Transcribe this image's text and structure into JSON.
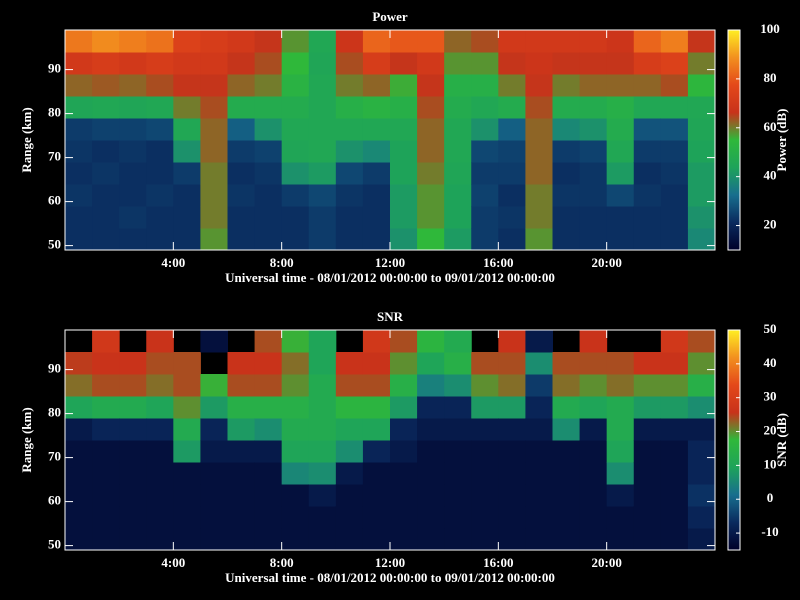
{
  "chart_data": [
    {
      "type": "heatmap",
      "title": "Power",
      "xlabel": "Universal time - 08/01/2012 00:00:00 to 09/01/2012 00:00:00",
      "ylabel": "Range (km)",
      "zlabel": "Power (dB)",
      "xlim": [
        0,
        24
      ],
      "ylim": [
        49,
        99
      ],
      "zlim": [
        10,
        100
      ],
      "xticks": [
        {
          "value": 4,
          "label": "4:00"
        },
        {
          "value": 8,
          "label": "8:00"
        },
        {
          "value": 12,
          "label": "12:00"
        },
        {
          "value": 16,
          "label": "16:00"
        },
        {
          "value": 20,
          "label": "20:00"
        }
      ],
      "yticks": [
        50,
        60,
        70,
        80,
        90
      ],
      "zticks": [
        20,
        40,
        60,
        80,
        100
      ],
      "colormap": [
        "#00002a",
        "#0a2a5e",
        "#176e8e",
        "#1ea35a",
        "#2fb83a",
        "#c8321a",
        "#e4481a",
        "#f2901e",
        "#ffee22"
      ],
      "xbins": [
        0,
        1,
        2,
        3,
        4,
        5,
        6,
        7,
        8,
        9,
        10,
        11,
        12,
        13,
        14,
        15,
        16,
        17,
        18,
        19,
        20,
        21,
        22,
        23,
        24
      ],
      "ybins": [
        49,
        54,
        59,
        64,
        69,
        74,
        79,
        84,
        89,
        94,
        99
      ],
      "z": [
        [
          22,
          22,
          23,
          22,
          23,
          24,
          45,
          62,
          70,
          85
        ],
        [
          22,
          22,
          22,
          23,
          22,
          25,
          46,
          63,
          72,
          88
        ],
        [
          22,
          23,
          22,
          22,
          23,
          25,
          45,
          62,
          70,
          86
        ],
        [
          22,
          22,
          23,
          22,
          22,
          26,
          46,
          64,
          72,
          84
        ],
        [
          22,
          22,
          22,
          24,
          40,
          46,
          60,
          66,
          70,
          74
        ],
        [
          58,
          60,
          60,
          60,
          62,
          62,
          64,
          66,
          70,
          72
        ],
        [
          22,
          22,
          23,
          22,
          24,
          30,
          48,
          62,
          66,
          70
        ],
        [
          22,
          22,
          22,
          23,
          25,
          40,
          48,
          60,
          64,
          66
        ],
        [
          22,
          22,
          24,
          40,
          45,
          46,
          48,
          52,
          55,
          58
        ],
        [
          24,
          24,
          26,
          42,
          46,
          46,
          46,
          46,
          45,
          46
        ],
        [
          22,
          22,
          23,
          26,
          40,
          46,
          50,
          60,
          64,
          68
        ],
        [
          22,
          22,
          22,
          24,
          38,
          46,
          52,
          62,
          72,
          82
        ],
        [
          40,
          42,
          42,
          44,
          44,
          46,
          50,
          56,
          66,
          80
        ],
        [
          55,
          58,
          58,
          60,
          62,
          62,
          64,
          66,
          70,
          80
        ],
        [
          42,
          44,
          44,
          45,
          46,
          46,
          48,
          50,
          58,
          62
        ],
        [
          24,
          24,
          25,
          24,
          26,
          40,
          46,
          50,
          58,
          64
        ],
        [
          22,
          23,
          22,
          24,
          25,
          30,
          48,
          60,
          66,
          70
        ],
        [
          58,
          60,
          60,
          62,
          62,
          62,
          64,
          66,
          68,
          70
        ],
        [
          22,
          22,
          23,
          22,
          24,
          38,
          48,
          60,
          66,
          70
        ],
        [
          22,
          22,
          23,
          23,
          25,
          40,
          48,
          62,
          66,
          70
        ],
        [
          22,
          22,
          26,
          42,
          46,
          48,
          50,
          62,
          66,
          68
        ],
        [
          22,
          22,
          23,
          22,
          24,
          28,
          46,
          62,
          72,
          82
        ],
        [
          22,
          22,
          22,
          23,
          24,
          28,
          46,
          64,
          74,
          86
        ],
        [
          38,
          40,
          42,
          42,
          44,
          45,
          46,
          54,
          60,
          66
        ]
      ]
    },
    {
      "type": "heatmap",
      "title": "SNR",
      "xlabel": "Universal time - 08/01/2012 00:00:00 to 09/01/2012 00:00:00",
      "ylabel": "Range (km)",
      "zlabel": "SNR (dB)",
      "xlim": [
        0,
        24
      ],
      "ylim": [
        49,
        99
      ],
      "zlim": [
        -15,
        50
      ],
      "xticks": [
        {
          "value": 4,
          "label": "4:00"
        },
        {
          "value": 8,
          "label": "8:00"
        },
        {
          "value": 12,
          "label": "12:00"
        },
        {
          "value": 16,
          "label": "16:00"
        },
        {
          "value": 20,
          "label": "20:00"
        }
      ],
      "yticks": [
        50,
        60,
        70,
        80,
        90
      ],
      "zticks": [
        -10,
        0,
        10,
        20,
        30,
        40,
        50
      ],
      "colormap": [
        "#00002a",
        "#0a2a5e",
        "#176e8e",
        "#1ea35a",
        "#2fb83a",
        "#c8321a",
        "#e4481a",
        "#f2901e",
        "#ffee22"
      ],
      "xbins": [
        0,
        1,
        2,
        3,
        4,
        5,
        6,
        7,
        8,
        9,
        10,
        11,
        12,
        13,
        14,
        15,
        16,
        17,
        18,
        19,
        20,
        21,
        22,
        23,
        24
      ],
      "ybins": [
        49,
        54,
        59,
        64,
        69,
        74,
        79,
        84,
        89,
        94,
        99
      ],
      "z": [
        [
          -12,
          -12,
          -12,
          -12,
          -12,
          -10,
          10,
          22,
          25,
          null
        ],
        [
          -12,
          -12,
          -12,
          -12,
          -12,
          -8,
          12,
          24,
          26,
          28
        ],
        [
          -12,
          -12,
          -12,
          -12,
          -12,
          -8,
          12,
          24,
          26,
          null
        ],
        [
          -12,
          -12,
          -12,
          -12,
          -12,
          -8,
          10,
          22,
          24,
          26
        ],
        [
          -12,
          -12,
          -12,
          -12,
          8,
          12,
          20,
          24,
          24,
          null
        ],
        [
          -12,
          -12,
          -12,
          -12,
          -10,
          -8,
          8,
          18,
          null,
          -12
        ],
        [
          -12,
          -12,
          -12,
          -12,
          -10,
          8,
          14,
          24,
          26,
          null
        ],
        [
          -12,
          -12,
          -12,
          -12,
          -10,
          6,
          14,
          24,
          26,
          24
        ],
        [
          -12,
          -12,
          -12,
          5,
          10,
          12,
          14,
          20,
          22,
          18
        ],
        [
          -12,
          -12,
          -10,
          6,
          10,
          12,
          12,
          12,
          10,
          10
        ],
        [
          -12,
          -12,
          -12,
          -10,
          6,
          10,
          16,
          24,
          26,
          null
        ],
        [
          -12,
          -12,
          -12,
          -12,
          -8,
          10,
          16,
          24,
          26,
          28
        ],
        [
          -12,
          -12,
          -12,
          -12,
          -10,
          -8,
          8,
          14,
          20,
          24
        ],
        [
          -12,
          -12,
          -12,
          -12,
          -12,
          -10,
          -8,
          4,
          10,
          16
        ],
        [
          -12,
          -12,
          -12,
          -12,
          -12,
          -10,
          -8,
          6,
          14,
          12
        ],
        [
          -12,
          -12,
          -12,
          -12,
          -12,
          -10,
          8,
          20,
          24,
          null
        ],
        [
          -12,
          -12,
          -12,
          -12,
          -12,
          -10,
          8,
          22,
          24,
          26
        ],
        [
          -12,
          -12,
          -12,
          -12,
          -12,
          -10,
          -8,
          -5,
          6,
          -10
        ],
        [
          -12,
          -12,
          -12,
          -12,
          -12,
          6,
          12,
          22,
          24,
          null
        ],
        [
          -12,
          -12,
          -12,
          -12,
          -12,
          -10,
          10,
          20,
          24,
          26
        ],
        [
          -12,
          -12,
          -10,
          6,
          10,
          12,
          12,
          22,
          24,
          null
        ],
        [
          -12,
          -12,
          -12,
          -12,
          -12,
          -10,
          8,
          20,
          26,
          null
        ],
        [
          -12,
          -12,
          -12,
          -12,
          -12,
          -10,
          8,
          20,
          26,
          28
        ],
        [
          -10,
          -8,
          -6,
          -8,
          -8,
          -10,
          6,
          14,
          20,
          24
        ]
      ]
    }
  ]
}
